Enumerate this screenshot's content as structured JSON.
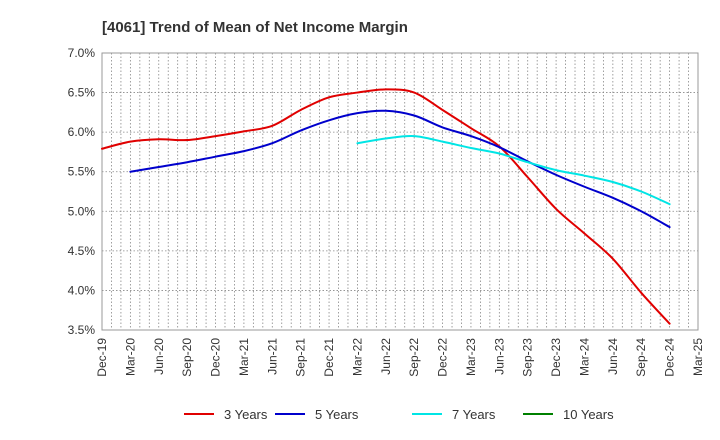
{
  "chart_data": {
    "type": "line",
    "title": "[4061]  Trend of Mean of Net Income Margin",
    "xlabel": "",
    "ylabel": "",
    "ylim": [
      3.5,
      7.0
    ],
    "yticks": [
      "3.5%",
      "4.0%",
      "4.5%",
      "5.0%",
      "5.5%",
      "6.0%",
      "6.5%",
      "7.0%"
    ],
    "categories": [
      "Dec-19",
      "Mar-20",
      "Jun-20",
      "Sep-20",
      "Dec-20",
      "Mar-21",
      "Jun-21",
      "Sep-21",
      "Dec-21",
      "Mar-22",
      "Jun-22",
      "Sep-22",
      "Dec-22",
      "Mar-23",
      "Jun-23",
      "Sep-23",
      "Dec-23",
      "Mar-24",
      "Jun-24",
      "Sep-24",
      "Dec-24",
      "Mar-25"
    ],
    "grid": true,
    "legend_position": "bottom",
    "series": [
      {
        "name": "3 Years",
        "color": "#e00000",
        "values": [
          5.79,
          5.88,
          5.91,
          5.9,
          5.95,
          6.01,
          6.08,
          6.28,
          6.44,
          6.5,
          6.54,
          6.5,
          6.28,
          6.05,
          5.82,
          5.43,
          5.03,
          4.72,
          4.4,
          3.97,
          3.58,
          null
        ]
      },
      {
        "name": "5 Years",
        "color": "#0000cc",
        "values": [
          null,
          5.5,
          5.56,
          5.62,
          5.69,
          5.76,
          5.86,
          6.02,
          6.15,
          6.24,
          6.27,
          6.21,
          6.06,
          5.95,
          5.81,
          5.63,
          5.46,
          5.31,
          5.17,
          5.0,
          4.8,
          null
        ]
      },
      {
        "name": "7 Years",
        "color": "#00e5e5",
        "values": [
          null,
          null,
          null,
          null,
          null,
          null,
          null,
          null,
          null,
          5.86,
          5.92,
          5.95,
          5.88,
          5.8,
          5.73,
          5.62,
          5.52,
          5.45,
          5.37,
          5.25,
          5.09,
          null
        ]
      },
      {
        "name": "10 Years",
        "color": "#008000",
        "values": [
          null,
          null,
          null,
          null,
          null,
          null,
          null,
          null,
          null,
          null,
          null,
          null,
          null,
          null,
          null,
          null,
          null,
          null,
          null,
          null,
          null,
          null
        ]
      }
    ]
  }
}
